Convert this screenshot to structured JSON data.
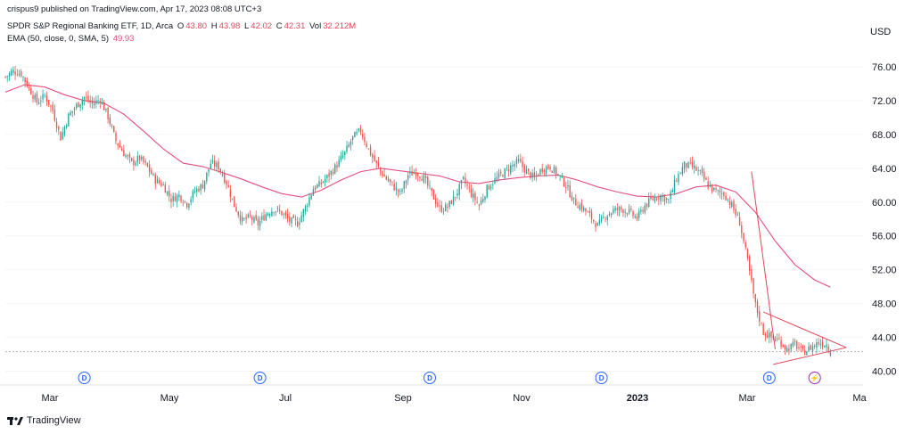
{
  "publish_line": "crispus9 published on TradingView.com, Apr 17, 2023 08:08 UTC+3",
  "legend": {
    "symbol_line": "SPDR S&P Regional Banking ETF, 1D, Arca",
    "o_label": "O",
    "o": "43.80",
    "h_label": "H",
    "h": "43.98",
    "l_label": "L",
    "l": "42.02",
    "c_label": "C",
    "c": "42.31",
    "vol_label": "Vol",
    "vol": "32.212M",
    "ema_line": "EMA (50, close, 0, SMA, 5)",
    "ema_value": "49.93"
  },
  "currency": "USD",
  "footer_brand": "TradingView",
  "colors": {
    "up": "#26a69a",
    "down": "#ef5350",
    "ema": "#e04f7a",
    "trendline": "#e0465a",
    "dividend": "#2962ff",
    "split": "#9c27b0"
  },
  "chart_data": {
    "type": "candlestick",
    "y_ticks": [
      "76.00",
      "72.00",
      "68.00",
      "64.00",
      "60.00",
      "56.00",
      "52.00",
      "48.00",
      "44.00",
      "40.00"
    ],
    "ylim": [
      39,
      78
    ],
    "x_ticks": [
      {
        "label": "Mar",
        "bold": false
      },
      {
        "label": "May",
        "bold": false
      },
      {
        "label": "Jul",
        "bold": false
      },
      {
        "label": "Sep",
        "bold": false
      },
      {
        "label": "Nov",
        "bold": false
      },
      {
        "label": "2023",
        "bold": true
      },
      {
        "label": "Mar",
        "bold": false
      },
      {
        "label": "Ma",
        "bold": false
      }
    ],
    "close_path": [
      [
        0,
        74.8
      ],
      [
        4,
        75.5
      ],
      [
        8,
        75.2
      ],
      [
        12,
        73.5
      ],
      [
        16,
        71.8
      ],
      [
        20,
        72.6
      ],
      [
        24,
        70.8
      ],
      [
        28,
        67.6
      ],
      [
        32,
        70.2
      ],
      [
        36,
        71.4
      ],
      [
        40,
        72.4
      ],
      [
        44,
        71.6
      ],
      [
        48,
        72.2
      ],
      [
        52,
        70.1
      ],
      [
        56,
        67.2
      ],
      [
        60,
        65.8
      ],
      [
        64,
        64.6
      ],
      [
        68,
        65.2
      ],
      [
        72,
        64.1
      ],
      [
        76,
        62.6
      ],
      [
        80,
        62.0
      ],
      [
        84,
        60.3
      ],
      [
        88,
        60.8
      ],
      [
        92,
        59.8
      ],
      [
        96,
        61.3
      ],
      [
        100,
        62.0
      ],
      [
        104,
        64.6
      ],
      [
        108,
        64.2
      ],
      [
        112,
        62.3
      ],
      [
        116,
        59.6
      ],
      [
        120,
        57.8
      ],
      [
        124,
        58.2
      ],
      [
        128,
        57.4
      ],
      [
        132,
        58.6
      ],
      [
        136,
        59.2
      ],
      [
        140,
        58.7
      ],
      [
        144,
        57.8
      ],
      [
        148,
        57.5
      ],
      [
        152,
        59.4
      ],
      [
        156,
        61.6
      ],
      [
        160,
        62.2
      ],
      [
        164,
        63.2
      ],
      [
        168,
        64.4
      ],
      [
        172,
        65.8
      ],
      [
        176,
        67.6
      ],
      [
        180,
        68.5
      ],
      [
        184,
        66.2
      ],
      [
        188,
        64.4
      ],
      [
        192,
        63.0
      ],
      [
        196,
        62.0
      ],
      [
        200,
        61.0
      ],
      [
        204,
        63.2
      ],
      [
        208,
        63.6
      ],
      [
        212,
        62.8
      ],
      [
        216,
        61.0
      ],
      [
        220,
        59.2
      ],
      [
        224,
        59.4
      ],
      [
        228,
        60.8
      ],
      [
        232,
        62.6
      ],
      [
        236,
        61.0
      ],
      [
        240,
        59.6
      ],
      [
        244,
        61.6
      ],
      [
        248,
        62.6
      ],
      [
        252,
        63.4
      ],
      [
        256,
        64.2
      ],
      [
        260,
        64.8
      ],
      [
        264,
        63.6
      ],
      [
        268,
        62.8
      ],
      [
        272,
        64.0
      ],
      [
        276,
        64.2
      ],
      [
        280,
        63.2
      ],
      [
        284,
        62.0
      ],
      [
        288,
        60.1
      ],
      [
        292,
        59.4
      ],
      [
        296,
        58.4
      ],
      [
        300,
        57.2
      ],
      [
        304,
        58.4
      ],
      [
        308,
        59.0
      ],
      [
        312,
        59.2
      ],
      [
        316,
        58.8
      ],
      [
        320,
        58.1
      ],
      [
        324,
        59.6
      ],
      [
        328,
        60.4
      ],
      [
        332,
        60.8
      ],
      [
        336,
        60.2
      ],
      [
        340,
        62.8
      ],
      [
        344,
        64.4
      ],
      [
        348,
        64.2
      ],
      [
        352,
        63.4
      ],
      [
        356,
        62.0
      ],
      [
        360,
        61.2
      ],
      [
        364,
        61.0
      ],
      [
        368,
        59.6
      ],
      [
        372,
        57.6
      ],
      [
        376,
        53.0
      ],
      [
        380,
        47.8
      ],
      [
        384,
        44.6
      ],
      [
        388,
        44.0
      ],
      [
        392,
        43.6
      ],
      [
        396,
        42.6
      ],
      [
        400,
        43.2
      ],
      [
        404,
        42.2
      ],
      [
        408,
        42.8
      ],
      [
        412,
        43.4
      ],
      [
        416,
        43.2
      ],
      [
        418,
        42.3
      ]
    ],
    "ema_path": [
      [
        0,
        73.0
      ],
      [
        10,
        73.9
      ],
      [
        20,
        73.6
      ],
      [
        30,
        72.7
      ],
      [
        40,
        72.0
      ],
      [
        50,
        71.7
      ],
      [
        60,
        70.4
      ],
      [
        70,
        68.4
      ],
      [
        80,
        66.3
      ],
      [
        90,
        64.6
      ],
      [
        100,
        64.2
      ],
      [
        110,
        63.5
      ],
      [
        120,
        62.7
      ],
      [
        130,
        61.8
      ],
      [
        140,
        61.0
      ],
      [
        150,
        60.6
      ],
      [
        160,
        61.4
      ],
      [
        170,
        62.6
      ],
      [
        180,
        63.6
      ],
      [
        190,
        64.0
      ],
      [
        200,
        63.7
      ],
      [
        210,
        63.4
      ],
      [
        220,
        63.1
      ],
      [
        230,
        62.4
      ],
      [
        240,
        62.2
      ],
      [
        250,
        62.6
      ],
      [
        260,
        62.9
      ],
      [
        270,
        63.1
      ],
      [
        280,
        63.2
      ],
      [
        290,
        62.6
      ],
      [
        300,
        61.8
      ],
      [
        310,
        61.2
      ],
      [
        320,
        60.7
      ],
      [
        330,
        60.6
      ],
      [
        340,
        61.0
      ],
      [
        350,
        61.8
      ],
      [
        360,
        62.0
      ],
      [
        370,
        61.2
      ],
      [
        380,
        58.8
      ],
      [
        390,
        55.4
      ],
      [
        400,
        52.6
      ],
      [
        410,
        50.8
      ],
      [
        418,
        49.93
      ]
    ],
    "trendlines": [
      {
        "from": [
          378,
          63.6
        ],
        "to": [
          390,
          42.6
        ]
      },
      {
        "from": [
          384,
          47.0
        ],
        "to": [
          426,
          42.8
        ]
      },
      {
        "from": [
          389,
          40.8
        ],
        "to": [
          426,
          42.8
        ]
      }
    ],
    "last_price_line": 42.31,
    "events": [
      {
        "type": "dividend",
        "letter": "D",
        "at": 40
      },
      {
        "type": "dividend",
        "letter": "D",
        "at": 129
      },
      {
        "type": "dividend",
        "letter": "D",
        "at": 215
      },
      {
        "type": "dividend",
        "letter": "D",
        "at": 302
      },
      {
        "type": "dividend",
        "letter": "D",
        "at": 387
      },
      {
        "type": "split",
        "letter": "⚡",
        "at": 410
      }
    ]
  }
}
